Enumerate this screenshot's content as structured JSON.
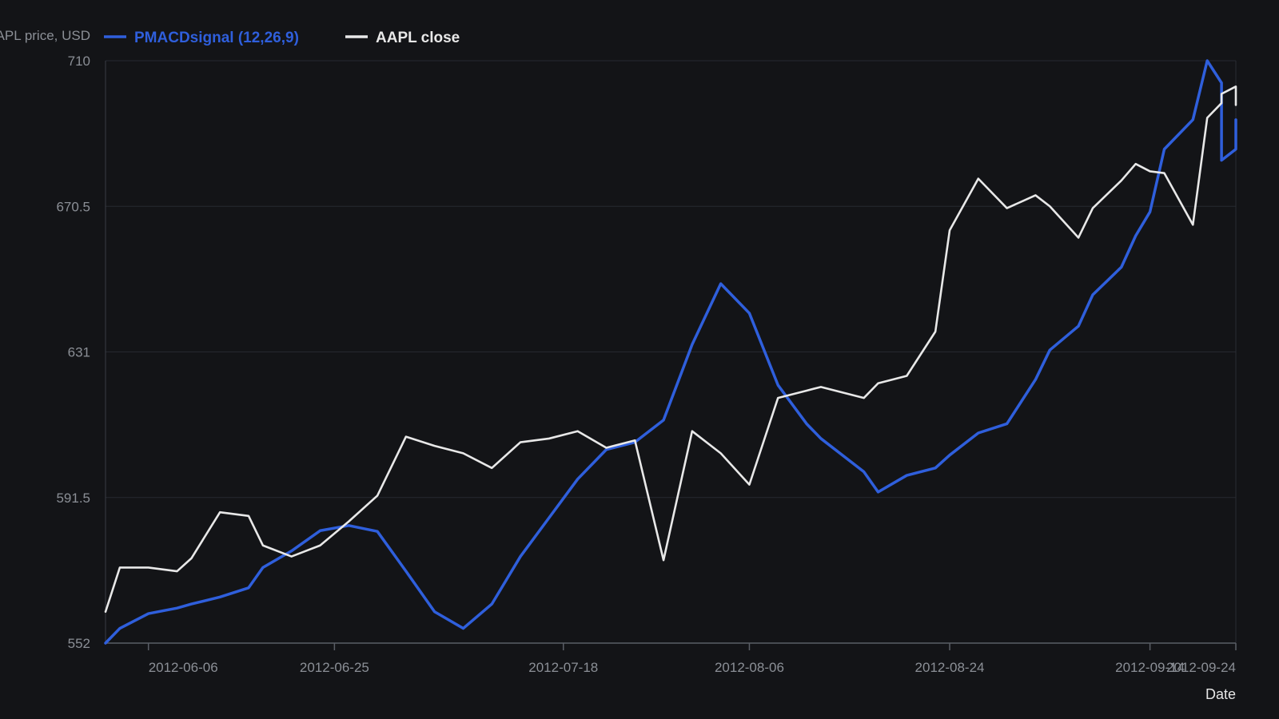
{
  "chart_data": {
    "type": "line",
    "ylabel": "AAPL price, USD",
    "xlabel": "Date",
    "ylim": [
      552,
      710
    ],
    "yticks": [
      "552",
      "591.5",
      "631",
      "670.5",
      "710"
    ],
    "xticks": [
      "2012-06-06",
      "2012-06-25",
      "2012-07-18",
      "2012-08-06",
      "2012-08-24",
      "2012-09-14",
      "2012-09-24"
    ],
    "legend_position": "top-left",
    "grid": "horizontal",
    "dates": [
      "2012-06-01",
      "2012-06-04",
      "2012-06-05",
      "2012-06-06",
      "2012-06-07",
      "2012-06-08",
      "2012-06-11",
      "2012-06-12",
      "2012-06-13",
      "2012-06-14",
      "2012-06-15",
      "2012-06-18",
      "2012-06-19",
      "2012-06-20",
      "2012-06-21",
      "2012-06-22",
      "2012-06-25",
      "2012-06-26",
      "2012-06-27",
      "2012-06-28",
      "2012-06-29",
      "2012-07-02",
      "2012-07-03",
      "2012-07-05",
      "2012-07-06",
      "2012-07-09",
      "2012-07-10",
      "2012-07-11",
      "2012-07-12",
      "2012-07-13",
      "2012-07-16",
      "2012-07-17",
      "2012-07-18",
      "2012-07-19",
      "2012-07-20",
      "2012-07-23",
      "2012-07-24",
      "2012-07-25",
      "2012-07-26",
      "2012-07-27",
      "2012-07-30",
      "2012-07-31",
      "2012-08-01",
      "2012-08-02",
      "2012-08-03",
      "2012-08-06",
      "2012-08-07",
      "2012-08-08",
      "2012-08-09",
      "2012-08-10",
      "2012-08-13",
      "2012-08-14",
      "2012-08-15",
      "2012-08-16",
      "2012-08-17",
      "2012-08-20",
      "2012-08-21",
      "2012-08-22",
      "2012-08-23",
      "2012-08-24",
      "2012-08-27",
      "2012-08-28",
      "2012-08-29",
      "2012-08-30",
      "2012-08-31",
      "2012-09-04",
      "2012-09-05",
      "2012-09-06",
      "2012-09-07",
      "2012-09-10",
      "2012-09-11",
      "2012-09-12",
      "2012-09-13",
      "2012-09-14",
      "2012-09-17",
      "2012-09-18",
      "2012-09-19",
      "2012-09-20",
      "2012-09-21",
      "2012-09-24"
    ],
    "series": [
      {
        "name": "PMACDsignal (12,26,9)",
        "color": "#2f5fdc",
        "points": [
          [
            "2012-06-01",
            552.0
          ],
          [
            "2012-06-04",
            556.0
          ],
          [
            "2012-06-06",
            560.0
          ],
          [
            "2012-06-08",
            561.5
          ],
          [
            "2012-06-11",
            562.6
          ],
          [
            "2012-06-13",
            564.5
          ],
          [
            "2012-06-15",
            567.0
          ],
          [
            "2012-06-18",
            572.5
          ],
          [
            "2012-06-20",
            577.0
          ],
          [
            "2012-06-22",
            582.5
          ],
          [
            "2012-06-26",
            583.9
          ],
          [
            "2012-06-28",
            582.3
          ],
          [
            "2012-07-02",
            571.5
          ],
          [
            "2012-07-05",
            560.5
          ],
          [
            "2012-07-09",
            556.0
          ],
          [
            "2012-07-11",
            562.6
          ],
          [
            "2012-07-13",
            575.5
          ],
          [
            "2012-07-17",
            586.0
          ],
          [
            "2012-07-19",
            596.5
          ],
          [
            "2012-07-23",
            604.5
          ],
          [
            "2012-07-25",
            606.5
          ],
          [
            "2012-07-27",
            612.5
          ],
          [
            "2012-07-31",
            633.0
          ],
          [
            "2012-08-02",
            649.5
          ],
          [
            "2012-08-06",
            641.5
          ],
          [
            "2012-08-08",
            622.0
          ],
          [
            "2012-08-10",
            611.5
          ],
          [
            "2012-08-13",
            607.5
          ],
          [
            "2012-08-16",
            598.5
          ],
          [
            "2012-08-17",
            593.0
          ],
          [
            "2012-08-21",
            597.5
          ],
          [
            "2012-08-23",
            599.5
          ],
          [
            "2012-08-24",
            603.0
          ],
          [
            "2012-08-28",
            609.0
          ],
          [
            "2012-08-30",
            611.5
          ],
          [
            "2012-09-04",
            623.5
          ],
          [
            "2012-09-05",
            631.5
          ],
          [
            "2012-09-07",
            638.0
          ],
          [
            "2012-09-10",
            646.5
          ],
          [
            "2012-09-12",
            654.0
          ],
          [
            "2012-09-13",
            662.5
          ],
          [
            "2012-09-14",
            669.0
          ],
          [
            "2012-09-17",
            686.0
          ],
          [
            "2012-09-19",
            694.0
          ],
          [
            "2012-09-20",
            710.0
          ],
          [
            "2012-09-21",
            704.0
          ],
          [
            "2012-09-21",
            689.0
          ],
          [
            "2012-09-21",
            683.0
          ],
          [
            "2012-09-24",
            686.0
          ],
          [
            "2012-09-24",
            690.0
          ],
          [
            "2012-09-24",
            694.0
          ]
        ]
      },
      {
        "name": "AAPL close",
        "color": "#e8e8e8",
        "points": [
          [
            "2012-06-01",
            560.5
          ],
          [
            "2012-06-04",
            572.5
          ],
          [
            "2012-06-06",
            572.5
          ],
          [
            "2012-06-08",
            571.5
          ],
          [
            "2012-06-11",
            575.0
          ],
          [
            "2012-06-13",
            587.5
          ],
          [
            "2012-06-15",
            586.5
          ],
          [
            "2012-06-18",
            578.5
          ],
          [
            "2012-06-20",
            575.5
          ],
          [
            "2012-06-22",
            578.5
          ],
          [
            "2012-06-26",
            585.0
          ],
          [
            "2012-06-28",
            592.0
          ],
          [
            "2012-07-02",
            608.0
          ],
          [
            "2012-07-05",
            605.5
          ],
          [
            "2012-07-09",
            603.5
          ],
          [
            "2012-07-11",
            599.5
          ],
          [
            "2012-07-13",
            606.5
          ],
          [
            "2012-07-17",
            607.5
          ],
          [
            "2012-07-19",
            609.5
          ],
          [
            "2012-07-23",
            605.0
          ],
          [
            "2012-07-25",
            607.0
          ],
          [
            "2012-07-27",
            574.5
          ],
          [
            "2012-07-31",
            609.5
          ],
          [
            "2012-08-02",
            603.5
          ],
          [
            "2012-08-06",
            595.0
          ],
          [
            "2012-08-08",
            618.5
          ],
          [
            "2012-08-10",
            620.5
          ],
          [
            "2012-08-13",
            621.5
          ],
          [
            "2012-08-16",
            618.5
          ],
          [
            "2012-08-17",
            622.5
          ],
          [
            "2012-08-21",
            624.5
          ],
          [
            "2012-08-23",
            636.5
          ],
          [
            "2012-08-24",
            664.0
          ],
          [
            "2012-08-28",
            678.0
          ],
          [
            "2012-08-30",
            670.0
          ],
          [
            "2012-09-04",
            673.5
          ],
          [
            "2012-09-05",
            670.5
          ],
          [
            "2012-09-07",
            662.0
          ],
          [
            "2012-09-10",
            670.0
          ],
          [
            "2012-09-12",
            677.5
          ],
          [
            "2012-09-13",
            682.0
          ],
          [
            "2012-09-14",
            680.0
          ],
          [
            "2012-09-17",
            679.5
          ],
          [
            "2012-09-19",
            665.5
          ],
          [
            "2012-09-20",
            694.5
          ],
          [
            "2012-09-21",
            698.5
          ],
          [
            "2012-09-21",
            701.0
          ],
          [
            "2012-09-24",
            703.0
          ],
          [
            "2012-09-24",
            698.0
          ],
          [
            "2012-09-24",
            700.0
          ],
          [
            "2012-09-24",
            700.0
          ]
        ]
      }
    ]
  }
}
